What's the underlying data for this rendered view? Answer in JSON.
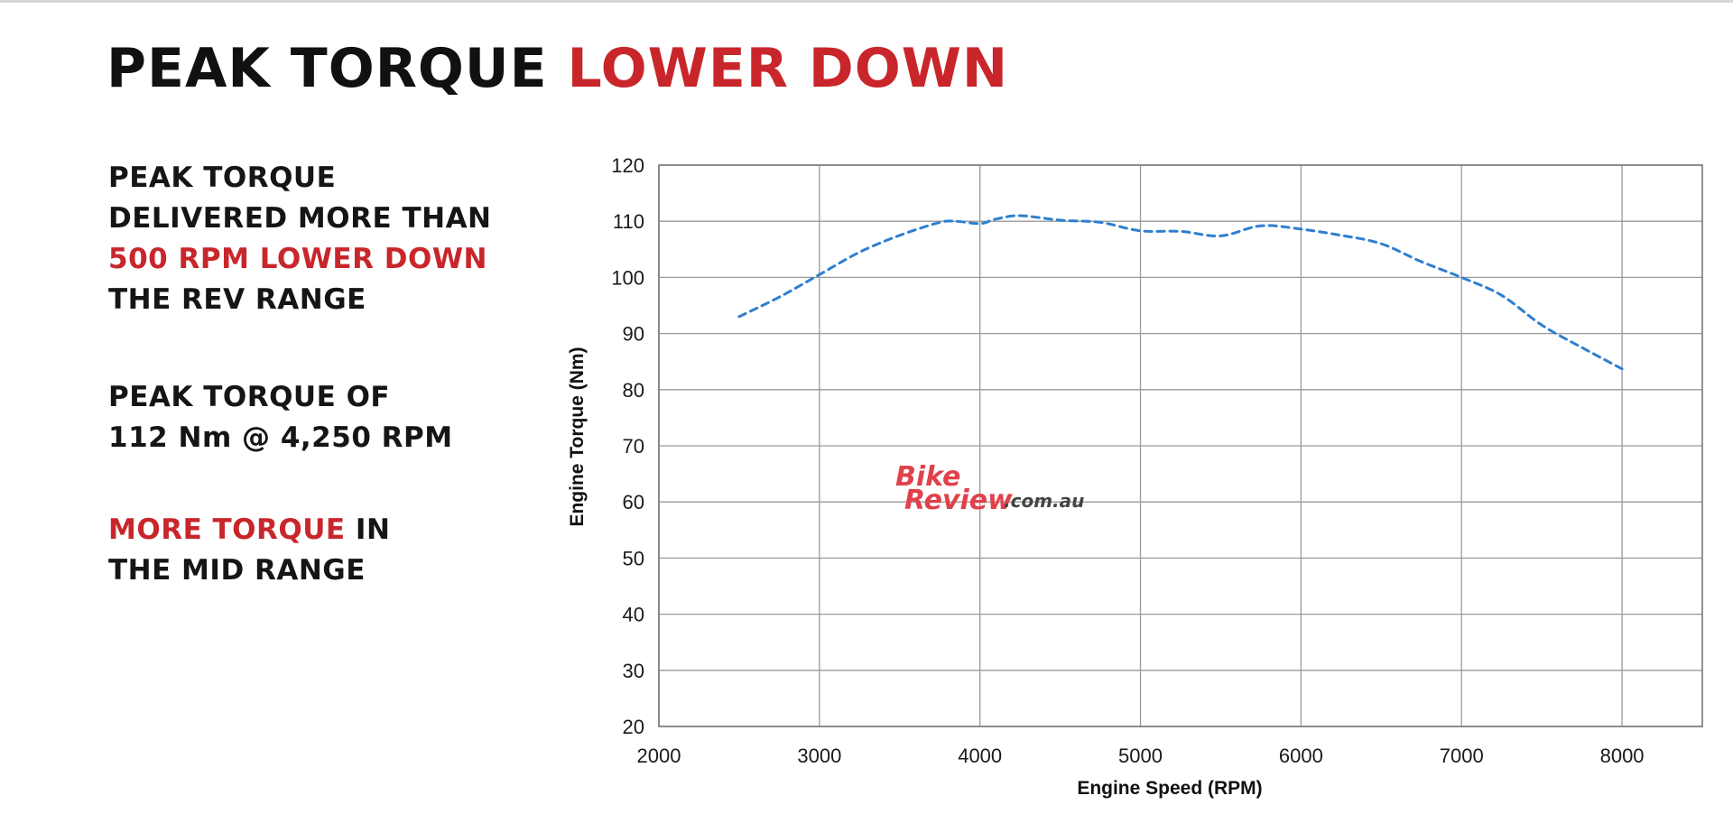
{
  "headline": {
    "part1": "PEAK TORQUE",
    "part2": "LOWER DOWN"
  },
  "blurbs": {
    "b1": {
      "line1": "PEAK TORQUE",
      "line2": "DELIVERED MORE THAN",
      "line3": "500 RPM LOWER DOWN",
      "line4": "THE REV RANGE"
    },
    "b2": {
      "line1": "PEAK TORQUE OF",
      "line2": "112 Nm @ 4,250 RPM"
    },
    "b3": {
      "red": "MORE TORQUE",
      "rest": " IN",
      "line2": "THE MID RANGE"
    }
  },
  "watermark": {
    "bike": "Bike",
    "review": "Review",
    "domain": ".com.au"
  },
  "colors": {
    "accent_red": "#c8262b",
    "series_blue": "#2f7fcf"
  },
  "chart_data": {
    "type": "line",
    "title": "",
    "xlabel": "Engine Speed (RPM)",
    "ylabel": "Engine Torque (Nm)",
    "xlim": [
      2000,
      8500
    ],
    "ylim": [
      20,
      120
    ],
    "xticks": [
      2000,
      3000,
      4000,
      5000,
      6000,
      7000,
      8000
    ],
    "yticks": [
      20,
      30,
      40,
      50,
      60,
      70,
      80,
      90,
      100,
      110,
      120
    ],
    "grid": true,
    "series": [
      {
        "x": [
          2500,
          2750,
          3000,
          3250,
          3500,
          3750,
          3850,
          4000,
          4100,
          4250,
          4500,
          4750,
          5000,
          5250,
          5500,
          5750,
          6000,
          6250,
          6500,
          6750,
          7000,
          7250,
          7500,
          7750,
          8000
        ],
        "y": [
          93,
          96.5,
          100.5,
          104.5,
          107.5,
          109.8,
          110,
          109.6,
          110.4,
          111,
          110.2,
          109.8,
          108.3,
          108.2,
          107.4,
          109.2,
          108.6,
          107.5,
          106,
          102.8,
          100,
          96.8,
          91.5,
          87.5,
          83.7
        ],
        "style": "dashed"
      }
    ]
  }
}
